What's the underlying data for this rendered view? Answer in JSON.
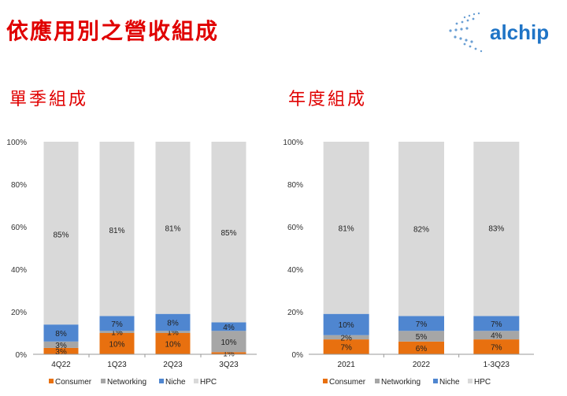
{
  "title": "依應用別之營收組成",
  "logo_text": "alchip",
  "colors": {
    "Consumer": "#e8700f",
    "Networking": "#a6a6a6",
    "Niche": "#4f86d0",
    "HPC": "#d9d9d9",
    "title": "#e00000"
  },
  "chart_data": [
    {
      "type": "bar",
      "stacked": true,
      "subtitle": "單季組成",
      "categories": [
        "4Q22",
        "1Q23",
        "2Q23",
        "3Q23"
      ],
      "series": [
        {
          "name": "Consumer",
          "values": [
            3,
            10,
            10,
            1
          ]
        },
        {
          "name": "Networking",
          "values": [
            3,
            1,
            1,
            10
          ]
        },
        {
          "name": "Niche",
          "values": [
            8,
            7,
            8,
            4
          ]
        },
        {
          "name": "HPC",
          "values": [
            85,
            81,
            81,
            85
          ]
        }
      ],
      "yticks": [
        "0%",
        "20%",
        "40%",
        "60%",
        "80%",
        "100%"
      ],
      "ylim": [
        0,
        100
      ],
      "legend": "bottom"
    },
    {
      "type": "bar",
      "stacked": true,
      "subtitle": "年度組成",
      "categories": [
        "2021",
        "2022",
        "1-3Q23"
      ],
      "series": [
        {
          "name": "Consumer",
          "values": [
            7,
            6,
            7
          ]
        },
        {
          "name": "Networking",
          "values": [
            2,
            5,
            4
          ]
        },
        {
          "name": "Niche",
          "values": [
            10,
            7,
            7
          ]
        },
        {
          "name": "HPC",
          "values": [
            81,
            82,
            83
          ]
        }
      ],
      "yticks": [
        "0%",
        "20%",
        "40%",
        "60%",
        "80%",
        "100%"
      ],
      "ylim": [
        0,
        100
      ],
      "legend": "bottom"
    }
  ]
}
